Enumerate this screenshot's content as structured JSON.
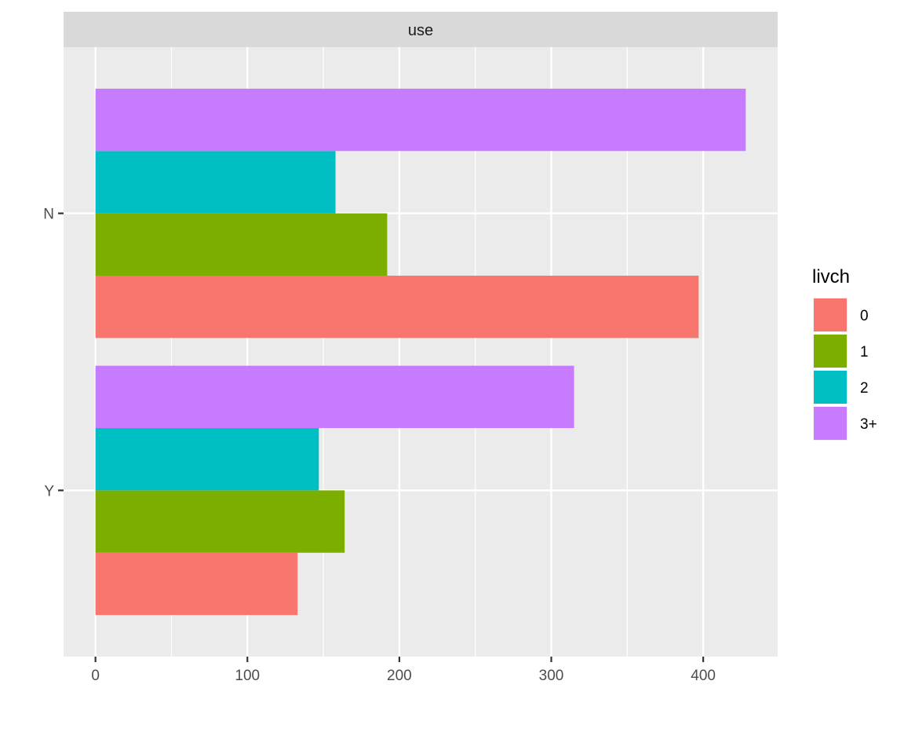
{
  "chart_data": {
    "type": "bar",
    "orientation": "horizontal",
    "position": "dodge",
    "facet_label": "use",
    "categories": [
      "N",
      "Y"
    ],
    "series": [
      {
        "name": "0",
        "color": "#F8766D",
        "values": [
          397,
          133
        ]
      },
      {
        "name": "1",
        "color": "#7CAE00",
        "values": [
          192,
          164
        ]
      },
      {
        "name": "2",
        "color": "#00BFC4",
        "values": [
          158,
          147
        ]
      },
      {
        "name": "3+",
        "color": "#C77CFF",
        "values": [
          428,
          315
        ]
      }
    ],
    "xticks": [
      0,
      100,
      200,
      300,
      400
    ],
    "xlim": [
      -21,
      449
    ],
    "legend": {
      "title": "livch",
      "placement": "right"
    },
    "grid": true,
    "panel_background": "#EBEBEB",
    "strip_background": "#D9D9D9"
  }
}
